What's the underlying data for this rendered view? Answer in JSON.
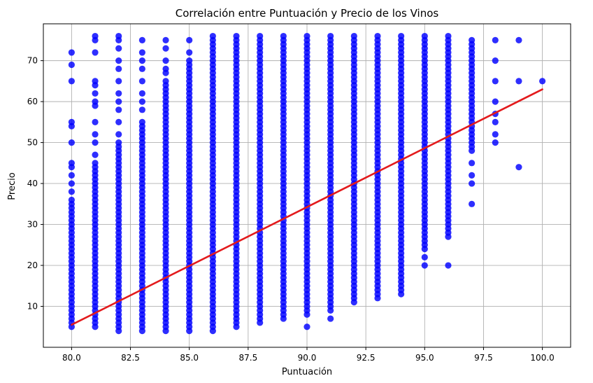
{
  "chart_data": {
    "type": "scatter",
    "title": "Correlación entre Puntuación y Precio de los Vinos",
    "xlabel": "Puntuación",
    "ylabel": "Precio",
    "xlim": [
      78.8,
      101.2
    ],
    "ylim": [
      0,
      79
    ],
    "grid": true,
    "x_ticks": [
      80.0,
      82.5,
      85.0,
      87.5,
      90.0,
      92.5,
      95.0,
      97.5,
      100.0
    ],
    "x_tick_labels": [
      "80.0",
      "82.5",
      "85.0",
      "87.5",
      "90.0",
      "92.5",
      "95.0",
      "97.5",
      "100.0"
    ],
    "y_ticks": [
      10,
      20,
      30,
      40,
      50,
      60,
      70
    ],
    "y_tick_labels": [
      "10",
      "20",
      "30",
      "40",
      "50",
      "60",
      "70"
    ],
    "colors": {
      "points": "#0000ff",
      "regression": "#e31a1c",
      "grid": "#b0b0b0"
    },
    "points_by_score": [
      {
        "x": 80,
        "min": 5,
        "max": 36,
        "extra": [
          38,
          40,
          42,
          44,
          45,
          50,
          54,
          55,
          65,
          69,
          72
        ]
      },
      {
        "x": 81,
        "min": 5,
        "max": 45,
        "extra": [
          47,
          50,
          52,
          55,
          59,
          60,
          62,
          64,
          65,
          72,
          75,
          76
        ]
      },
      {
        "x": 82,
        "min": 4,
        "max": 50,
        "extra": [
          52,
          55,
          58,
          60,
          62,
          65,
          68,
          70,
          73,
          75,
          76
        ]
      },
      {
        "x": 83,
        "min": 4,
        "max": 55,
        "extra": [
          58,
          60,
          62,
          65,
          68,
          70,
          72,
          75
        ]
      },
      {
        "x": 84,
        "min": 4,
        "max": 65,
        "extra": [
          67,
          68,
          70,
          73,
          75
        ]
      },
      {
        "x": 85,
        "min": 4,
        "max": 70,
        "extra": [
          72,
          75
        ]
      },
      {
        "x": 86,
        "min": 4,
        "max": 76,
        "extra": []
      },
      {
        "x": 87,
        "min": 5,
        "max": 76,
        "extra": []
      },
      {
        "x": 88,
        "min": 6,
        "max": 76,
        "extra": []
      },
      {
        "x": 89,
        "min": 7,
        "max": 76,
        "extra": []
      },
      {
        "x": 90,
        "min": 8,
        "max": 76,
        "extra": [
          5
        ]
      },
      {
        "x": 91,
        "min": 9,
        "max": 76,
        "extra": [
          7
        ]
      },
      {
        "x": 92,
        "min": 11,
        "max": 76,
        "extra": []
      },
      {
        "x": 93,
        "min": 12,
        "max": 76,
        "extra": []
      },
      {
        "x": 94,
        "min": 17,
        "max": 76,
        "extra": [
          13,
          14,
          15,
          16
        ]
      },
      {
        "x": 95,
        "min": 24,
        "max": 76,
        "extra": [
          20,
          22
        ]
      },
      {
        "x": 96,
        "min": 27,
        "max": 76,
        "extra": [
          20
        ]
      },
      {
        "x": 97,
        "min": 48,
        "max": 75,
        "extra": [
          35,
          40,
          42,
          45
        ]
      },
      {
        "x": 98,
        "min": 50,
        "max": 50,
        "extra": [
          52,
          55,
          57,
          60,
          65,
          70,
          75
        ]
      },
      {
        "x": 99,
        "min": 44,
        "max": 44,
        "extra": [
          65,
          75
        ]
      },
      {
        "x": 100,
        "min": 65,
        "max": 65,
        "extra": []
      }
    ],
    "regression_line": {
      "x": [
        80,
        100
      ],
      "y": [
        5.5,
        63
      ]
    }
  }
}
